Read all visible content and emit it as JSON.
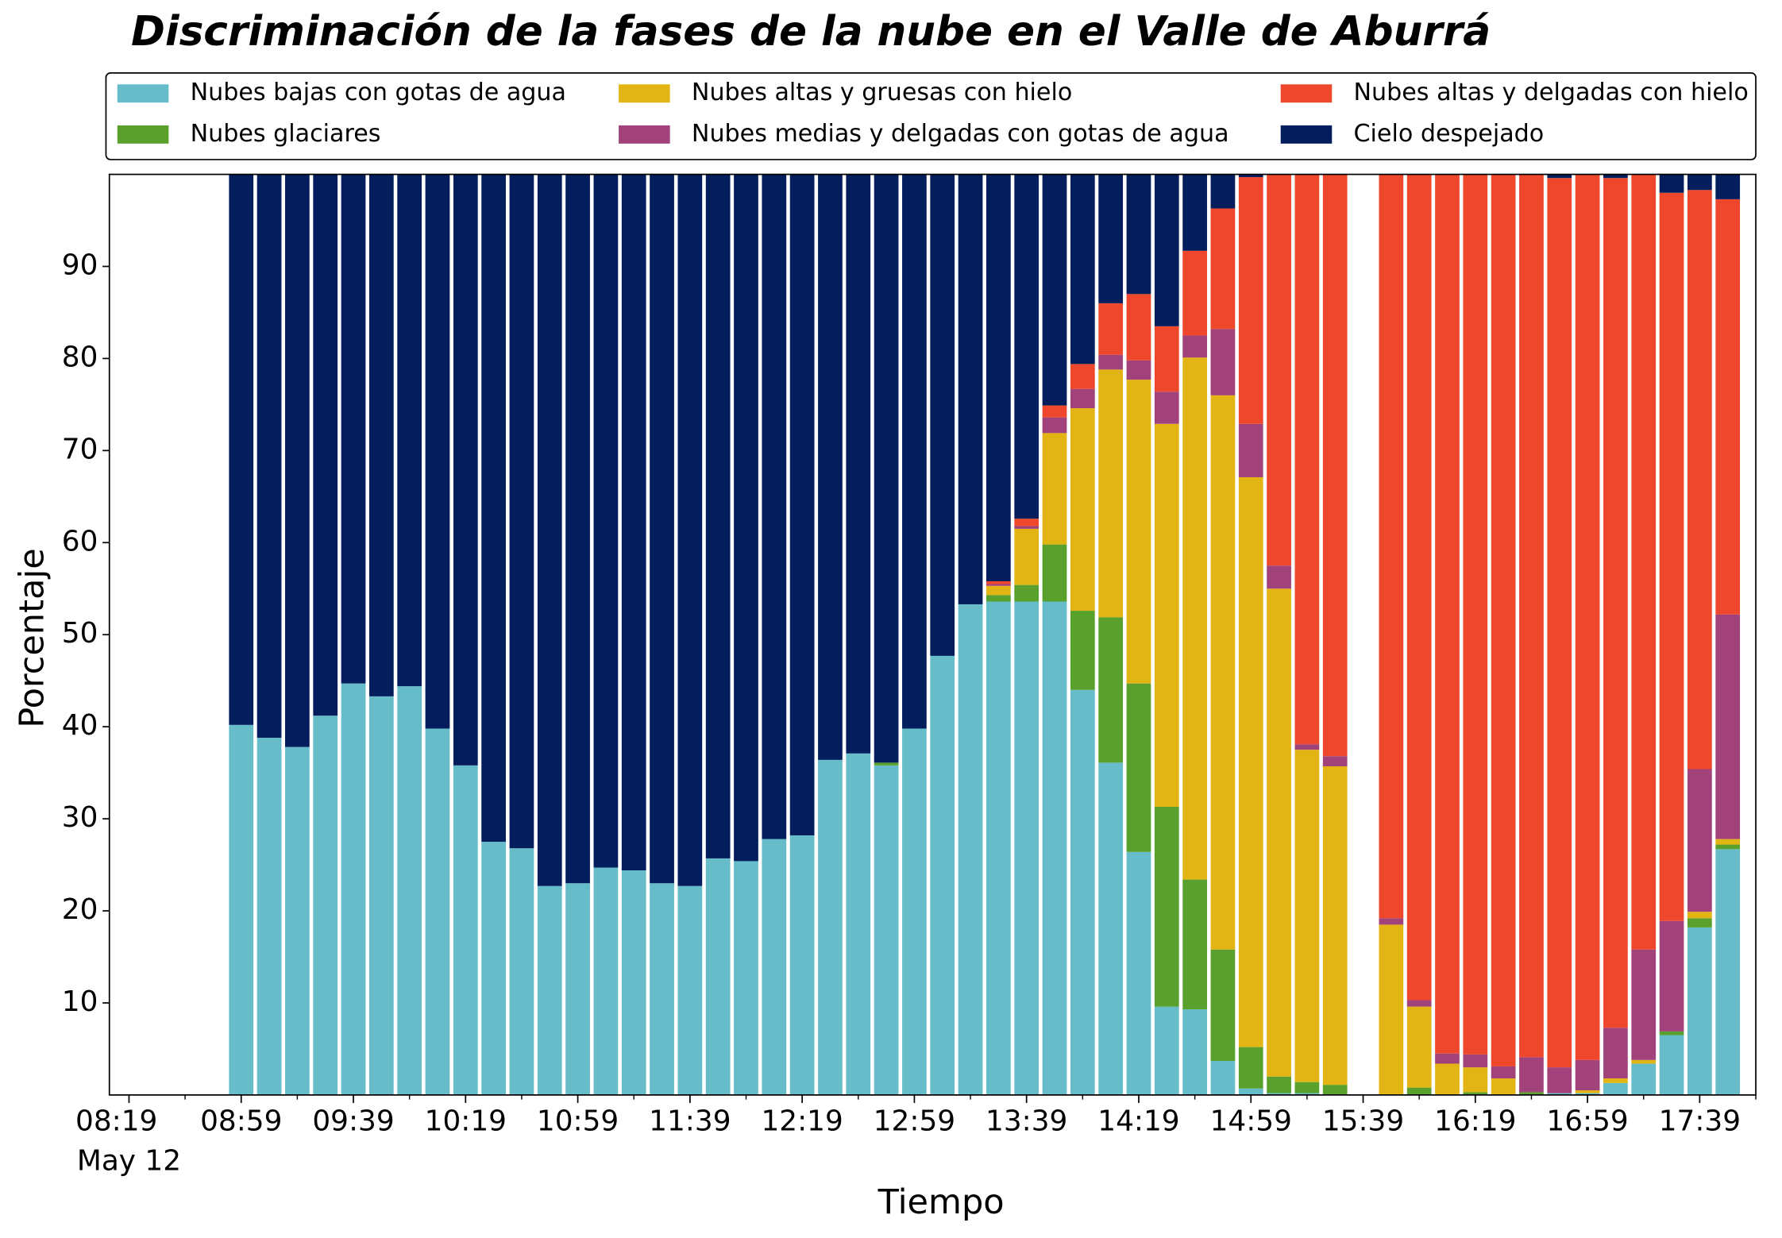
{
  "chart_data": {
    "type": "stacked_bar",
    "title": "Discriminación de la fases de la nube en el Valle de Aburrá",
    "xlabel": "Tiempo",
    "ylabel": "Porcentaje",
    "date_label": "May 12",
    "x": [
      "08:59",
      "09:09",
      "09:19",
      "09:29",
      "09:39",
      "09:49",
      "09:59",
      "10:09",
      "10:19",
      "10:29",
      "10:39",
      "10:49",
      "10:59",
      "11:09",
      "11:19",
      "11:29",
      "11:39",
      "11:49",
      "11:59",
      "12:09",
      "12:19",
      "12:29",
      "12:39",
      "12:49",
      "12:59",
      "13:09",
      "13:19",
      "13:29",
      "13:39",
      "13:49",
      "13:59",
      "14:09",
      "14:19",
      "14:29",
      "14:39",
      "14:49",
      "14:59",
      "15:09",
      "15:19",
      "15:29",
      "15:39",
      "15:49",
      "15:59",
      "16:09",
      "16:19",
      "16:29",
      "16:39",
      "16:49",
      "16:59",
      "17:09",
      "17:19",
      "17:29",
      "17:39",
      "17:49"
    ],
    "xlim": [
      "08:12",
      "17:59"
    ],
    "xticks": [
      "08:19",
      "08:59",
      "09:39",
      "10:19",
      "10:59",
      "11:39",
      "12:19",
      "12:59",
      "13:39",
      "14:19",
      "14:59",
      "15:39",
      "16:19",
      "16:59",
      "17:39"
    ],
    "ylim": [
      0,
      100
    ],
    "yticks": [
      10,
      20,
      30,
      40,
      50,
      60,
      70,
      80,
      90
    ],
    "legend": "top-outside",
    "series": [
      {
        "name": "Nubes bajas con gotas de agua",
        "color": "#66bdc9",
        "values": [
          40.2,
          38.8,
          37.8,
          41.2,
          44.7,
          43.3,
          44.4,
          39.8,
          35.8,
          27.5,
          26.8,
          22.7,
          23.0,
          24.7,
          24.4,
          23.0,
          22.7,
          25.7,
          25.4,
          27.8,
          28.2,
          36.4,
          37.1,
          35.8,
          39.8,
          47.7,
          53.3,
          53.6,
          53.6,
          53.6,
          44.0,
          36.1,
          26.4,
          9.6,
          9.3,
          3.7,
          0.7,
          0.2,
          0.2,
          0,
          null,
          0,
          0,
          0,
          0,
          0,
          0,
          0.2,
          0.2,
          1.3,
          3.4,
          6.5,
          18.2,
          26.7
        ]
      },
      {
        "name": "Nubes glaciares",
        "color": "#5aa02c",
        "values": [
          0,
          0,
          0,
          0,
          0,
          0,
          0,
          0,
          0,
          0,
          0,
          0,
          0,
          0,
          0,
          0,
          0,
          0,
          0,
          0,
          0,
          0,
          0,
          0.3,
          0,
          0,
          0,
          0.7,
          1.8,
          6.2,
          8.6,
          15.8,
          18.3,
          21.7,
          14.1,
          12.1,
          4.5,
          1.8,
          1.2,
          1.1,
          null,
          0,
          0.8,
          0,
          0.3,
          0,
          0.3,
          0,
          0,
          0,
          0,
          0.4,
          1.0,
          0.5
        ]
      },
      {
        "name": "Nubes altas y gruesas con hielo",
        "color": "#e3b514",
        "values": [
          0,
          0,
          0,
          0,
          0,
          0,
          0,
          0,
          0,
          0,
          0,
          0,
          0,
          0,
          0,
          0,
          0,
          0,
          0,
          0,
          0,
          0,
          0,
          0,
          0,
          0,
          0,
          1.0,
          6.1,
          12.1,
          22.0,
          26.9,
          33.0,
          41.6,
          56.7,
          60.2,
          61.9,
          53.0,
          36.1,
          34.6,
          null,
          18.5,
          8.8,
          3.4,
          2.7,
          1.8,
          0,
          0,
          0.3,
          0.5,
          0.4,
          0,
          0.7,
          0.6
        ]
      },
      {
        "name": "Nubes medias y delgadas con gotas de agua",
        "color": "#a2427a",
        "values": [
          0,
          0,
          0,
          0,
          0,
          0,
          0,
          0,
          0,
          0,
          0,
          0,
          0,
          0,
          0,
          0,
          0,
          0,
          0,
          0,
          0,
          0,
          0,
          0,
          0,
          0,
          0,
          0.2,
          0.3,
          1.7,
          2.1,
          1.6,
          2.1,
          3.5,
          2.4,
          7.2,
          5.8,
          2.5,
          0.6,
          1.1,
          null,
          0.7,
          0.7,
          1.1,
          1.4,
          1.3,
          3.8,
          2.8,
          3.3,
          5.5,
          12.0,
          12.0,
          15.5,
          24.4
        ]
      },
      {
        "name": "Nubes altas y delgadas con hielo",
        "color": "#ee472b",
        "values": [
          0,
          0,
          0,
          0,
          0,
          0,
          0,
          0,
          0,
          0,
          0,
          0,
          0,
          0,
          0,
          0,
          0,
          0,
          0,
          0,
          0,
          0,
          0,
          0,
          0,
          0,
          0,
          0.3,
          0.8,
          1.3,
          2.7,
          5.6,
          7.2,
          7.1,
          9.2,
          13.1,
          26.8,
          42.5,
          61.9,
          63.2,
          null,
          80.8,
          89.7,
          95.5,
          95.6,
          96.9,
          95.9,
          96.6,
          96.2,
          92.3,
          84.2,
          79.1,
          62.9,
          45.1
        ]
      },
      {
        "name": "Cielo despejado",
        "color": "#041e5d",
        "values": [
          59.8,
          61.2,
          62.2,
          58.8,
          55.3,
          56.7,
          55.6,
          60.2,
          64.2,
          72.5,
          73.2,
          77.3,
          77.0,
          75.3,
          75.6,
          77.0,
          77.3,
          74.3,
          74.6,
          72.2,
          71.8,
          63.6,
          62.9,
          63.9,
          60.2,
          52.3,
          46.7,
          44.2,
          37.4,
          25.1,
          20.6,
          14.0,
          13.0,
          16.5,
          8.3,
          3.7,
          0.3,
          0,
          0,
          0,
          null,
          0,
          0,
          0,
          0,
          0,
          0,
          0.4,
          0,
          0.4,
          0,
          2.0,
          1.7,
          2.7
        ]
      }
    ]
  }
}
